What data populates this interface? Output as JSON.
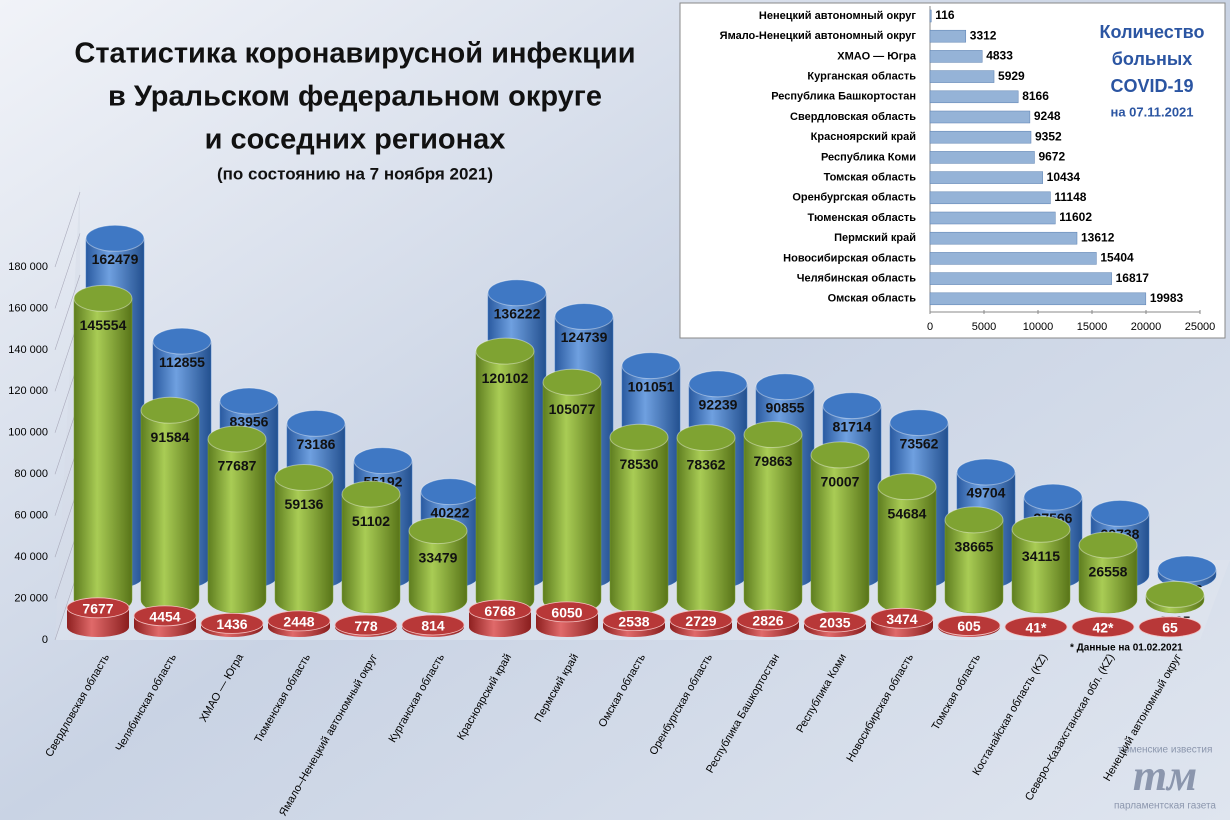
{
  "chart_data": [
    {
      "type": "cylinder",
      "title": [
        "Статистика коронавирусной инфекции",
        "в Уральском федеральном округе",
        "и соседних регионах"
      ],
      "subtitle": "(по состоянию  на 7 ноября 2021)",
      "annotation": "* Данные на 01.02.2021",
      "categories": [
        "Свердловская область",
        "Челябинская область",
        "ХМАО — Югра",
        "Тюменская область",
        "Ямало–Ненецкий автономный округ",
        "Курганская область",
        "Красноярский край",
        "Пермский край",
        "Омская область",
        "Оренбургская область",
        "Республика Башкортостан",
        "Республика Коми",
        "Новосибирская область",
        "Томская область",
        "Костанайская  область (KZ)",
        "Северо–Казахстанская обл. (KZ)",
        "Ненецкий автономный округ"
      ],
      "series": [
        {
          "color": "#3f78c4",
          "values": [
            162479,
            112855,
            83956,
            73186,
            55192,
            40222,
            136222,
            124739,
            101051,
            92239,
            90855,
            81714,
            73562,
            49704,
            37566,
            29738,
            2876
          ]
        },
        {
          "color": "#7fa332",
          "values": [
            145554,
            91584,
            77687,
            59136,
            51102,
            33479,
            120102,
            105077,
            78530,
            78362,
            79863,
            70007,
            54684,
            38665,
            34115,
            26558,
            2695
          ]
        },
        {
          "color": "#b83838",
          "values": [
            7677,
            4454,
            1436,
            2448,
            778,
            814,
            6768,
            6050,
            2538,
            2729,
            2826,
            2035,
            3474,
            605,
            41,
            42,
            65
          ],
          "value_labels": [
            "7677",
            "4454",
            "1436",
            "2448",
            "778",
            "814",
            "6768",
            "6050",
            "2538",
            "2729",
            "2826",
            "2035",
            "3474",
            "605",
            "41*",
            "42*",
            "65"
          ]
        }
      ],
      "ylim": [
        0,
        180000
      ],
      "yticks": [
        0,
        {
          "value": 20000,
          "label": "20 000"
        },
        {
          "value": 40000,
          "label": "40 000"
        },
        {
          "value": 60000,
          "label": "60 000"
        },
        {
          "value": 80000,
          "label": "80 000"
        },
        {
          "value": 100000,
          "label": "100 000"
        },
        {
          "value": 120000,
          "label": "120 000"
        },
        {
          "value": 140000,
          "label": "140 000"
        },
        {
          "value": 160000,
          "label": "160 000"
        },
        {
          "value": 180000,
          "label": "180 000"
        }
      ]
    },
    {
      "type": "barh",
      "title": [
        "Количество",
        "больных",
        "COVID-19"
      ],
      "subtitle": "на 07.11.2021",
      "categories": [
        "Ненецкий автономный округ",
        "Ямало-Ненецкий автономный округ",
        "ХМАО — Югра",
        "Курганская область",
        "Республика Башкортостан",
        "Свердловская область",
        "Красноярский край",
        "Республика Коми",
        "Томская область",
        "Оренбургская область",
        "Тюменская область",
        "Пермский край",
        "Новосибирская  область",
        "Челябинская область",
        "Омская область"
      ],
      "values": [
        116,
        3312,
        4833,
        5929,
        8166,
        9248,
        9352,
        9672,
        10434,
        11148,
        11602,
        13612,
        15404,
        16817,
        19983
      ],
      "color": "#95b3d7",
      "xlim": [
        0,
        25000
      ],
      "xticks": [
        0,
        5000,
        10000,
        15000,
        20000,
        25000
      ]
    }
  ],
  "logo": {
    "top": "тюменские известия",
    "mark": "тм",
    "bottom": "парламентская газета"
  }
}
